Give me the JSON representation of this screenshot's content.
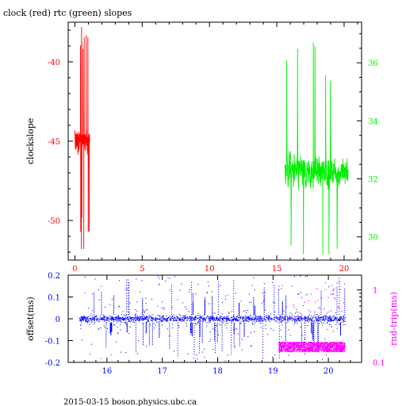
{
  "title": "clock (red) rtc (green) slopes",
  "footer": "2015-03-15  boson.physics.ubc.ca",
  "colors": {
    "red": "#ff0000",
    "green": "#00ee00",
    "blue": "#0000ff",
    "magenta": "#ff00ff",
    "axis": "#000000"
  },
  "chart_data": [
    {
      "type": "line",
      "title": "clock (red) rtc (green) slopes",
      "xlabel": "",
      "xlim": [
        -0.5,
        21.3
      ],
      "xticks": [
        0,
        5,
        10,
        15,
        20
      ],
      "x_tick_color": "red",
      "ylabel": "clockslope",
      "ylim": [
        -52.5,
        -37.5
      ],
      "yticks": [
        -50,
        -45,
        -40
      ],
      "y_tick_color": "red",
      "y2lim": [
        29.2,
        37.4
      ],
      "y2ticks": [
        30,
        32,
        34,
        36
      ],
      "y2_tick_color": "green",
      "grid": false,
      "series": [
        {
          "axis": "left",
          "color": "red",
          "x_range": [
            0,
            1.1
          ],
          "y_range_approx": [
            -51.8,
            -37.8
          ],
          "typical_range": [
            -46.5,
            -43.5
          ]
        },
        {
          "axis": "right",
          "color": "green",
          "x_range": [
            15.6,
            20.3
          ],
          "y_range_approx": [
            29.4,
            36.7
          ],
          "typical_range": [
            31,
            33.5
          ]
        }
      ]
    },
    {
      "type": "scatter",
      "xlabel": "",
      "xlim": [
        15.3,
        20.6
      ],
      "xticks": [
        16,
        17,
        18,
        19,
        20
      ],
      "x_tick_color": "blue",
      "ylabel": "offset(ms)",
      "ylim": [
        -0.2,
        0.2
      ],
      "yticks": [
        -0.2,
        -0.1,
        0,
        0.1,
        0.2
      ],
      "y_tick_color": "blue",
      "y2label": "rnd-trip(ms)",
      "y2scale": "log",
      "y2lim": [
        0.1,
        1.6
      ],
      "y2ticks": [
        0.1,
        1
      ],
      "y2_tick_color": "magenta",
      "grid": false,
      "series": [
        {
          "axis": "left",
          "color": "blue",
          "x_range": [
            15.5,
            20.3
          ],
          "band": [
            -0.02,
            0.02
          ],
          "spread": [
            -0.2,
            0.2
          ]
        },
        {
          "axis": "right",
          "color": "magenta",
          "x_range": [
            19.1,
            20.3
          ],
          "band": [
            0.14,
            0.19
          ]
        }
      ]
    }
  ]
}
